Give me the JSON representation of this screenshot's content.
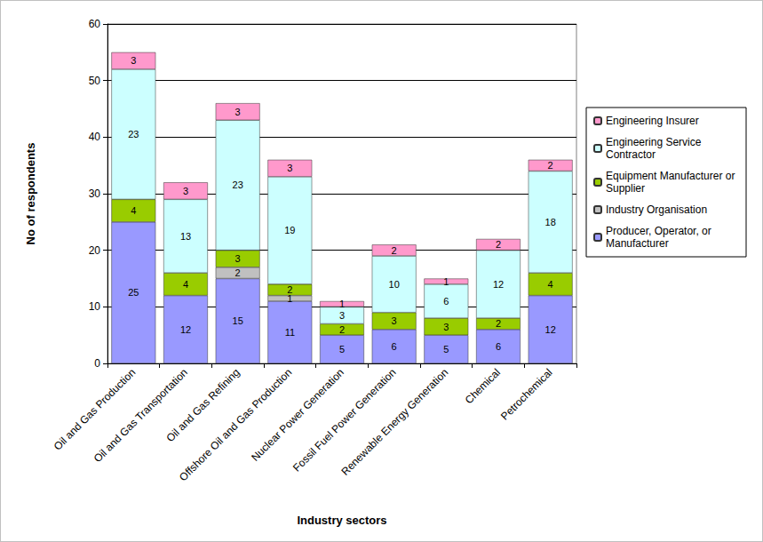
{
  "chart_data": {
    "type": "bar",
    "stacked": true,
    "data_labels": true,
    "grid": true,
    "legend": "right",
    "x_label": "Industry sectors",
    "y_label": "No of respondents",
    "categories": [
      "Oil and Gas Production",
      "Oil and Gas Transportation",
      "Oil and Gas Refining",
      "Offshore Oil and Gas Production",
      "Nuclear Power Generation",
      "Fossil Fuel Power Generation",
      "Renewable Energy Generation",
      "Chemical",
      "Petrochemical"
    ],
    "series": [
      {
        "name": "Producer, Operator, or Manufacturer",
        "color": "#9999ff",
        "values": [
          25,
          12,
          15,
          11,
          5,
          6,
          5,
          6,
          12
        ]
      },
      {
        "name": "Industry Organisation",
        "color": "#c0c0c0",
        "values": [
          null,
          null,
          2,
          1,
          null,
          null,
          null,
          null,
          null
        ]
      },
      {
        "name": "Equipment Manufacturer or Supplier",
        "color": "#99cc00",
        "values": [
          4,
          4,
          3,
          2,
          2,
          3,
          3,
          2,
          4
        ]
      },
      {
        "name": "Engineering Service Contractor",
        "color": "#ccffff",
        "values": [
          23,
          13,
          23,
          19,
          3,
          10,
          6,
          12,
          18
        ]
      },
      {
        "name": "Engineering Insurer",
        "color": "#ff99cc",
        "values": [
          3,
          3,
          3,
          3,
          1,
          2,
          1,
          2,
          2
        ]
      }
    ],
    "ylim": [
      0,
      60
    ],
    "yticks": [
      0,
      10,
      20,
      30,
      40,
      50,
      60
    ]
  }
}
